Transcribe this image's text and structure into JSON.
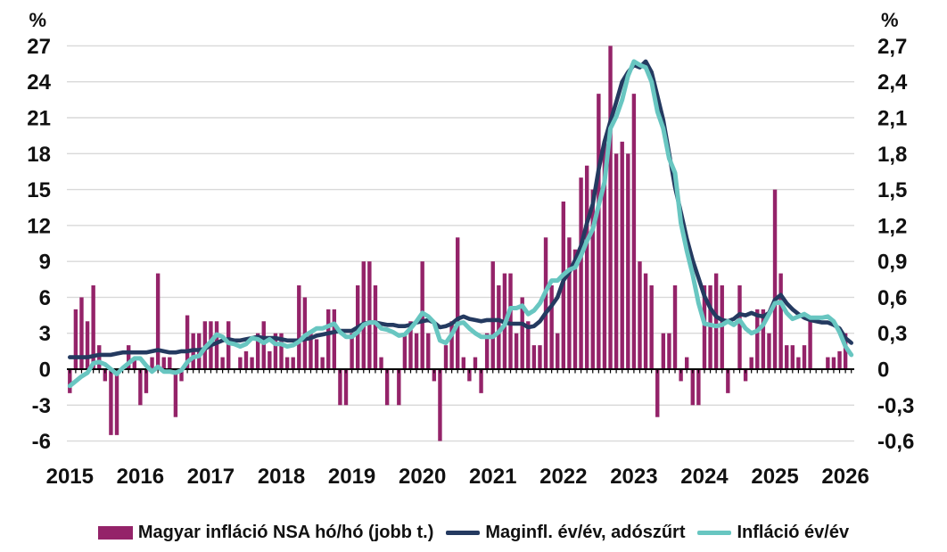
{
  "figure": {
    "background": "#ffffff",
    "text_color": "#111111",
    "gridline_color": "#d9d9d9",
    "zero_line_color": "#000000"
  },
  "legend": {
    "items": [
      {
        "label": "Magyar infláció NSA hó/hó (jobb t.)",
        "marker": "bar-swatch"
      },
      {
        "label": "Maginfl. év/év, adószűrt",
        "marker": "line-swatch"
      },
      {
        "label": "Infláció év/év",
        "marker": "line-swatch"
      }
    ]
  },
  "chart_data": {
    "type": "combo",
    "subtype": [
      "bar",
      "line",
      "line"
    ],
    "x_start": "2015-01",
    "x_end": "2026-02",
    "months": 134,
    "x_year_labels": [
      "2015",
      "2016",
      "2017",
      "2018",
      "2019",
      "2020",
      "2021",
      "2022",
      "2023",
      "2024",
      "2025",
      "2026"
    ],
    "grid": "horizontal-only",
    "legend_position": "bottom",
    "left_axis": {
      "unit": "%",
      "min": -6,
      "max": 27,
      "step": 3,
      "tick_labels": [
        "27",
        "24",
        "21",
        "18",
        "15",
        "12",
        "9",
        "6",
        "3",
        "0",
        "-3",
        "-6"
      ]
    },
    "right_axis": {
      "unit": "%",
      "min": -0.6,
      "max": 2.7,
      "step": 0.3,
      "tick_labels": [
        "2,7",
        "2,4",
        "2,1",
        "1,8",
        "1,5",
        "1,2",
        "0,9",
        "0,6",
        "0,3",
        "0",
        "-0,3",
        "-0,6"
      ]
    },
    "series": [
      {
        "name": "Magyar infláció NSA hó/hó (jobb t.)",
        "type": "bar",
        "axis": "right",
        "color": "#942369",
        "values": [
          -0.2,
          0.5,
          0.6,
          0.4,
          0.7,
          0.2,
          -0.1,
          -0.55,
          -0.55,
          0,
          0.2,
          0.1,
          -0.3,
          -0.2,
          0.1,
          0.8,
          0.1,
          0.1,
          -0.4,
          -0.1,
          0.45,
          0.3,
          0.3,
          0.4,
          0.4,
          0.4,
          0.1,
          0.4,
          0,
          0.1,
          0.15,
          0.1,
          0.3,
          0.4,
          0.15,
          0.3,
          0.3,
          0.1,
          0.1,
          0.7,
          0.6,
          0.3,
          0.25,
          0.1,
          0.5,
          0.5,
          -0.3,
          -0.3,
          0.3,
          0.7,
          0.9,
          0.9,
          0.7,
          0.1,
          -0.3,
          0,
          -0.3,
          0.3,
          0.4,
          0.3,
          0.9,
          0.3,
          -0.1,
          -0.6,
          0.2,
          0.4,
          1.1,
          0.1,
          -0.1,
          0.1,
          -0.2,
          0.3,
          0.9,
          0.7,
          0.8,
          0.8,
          0.3,
          0.6,
          0.4,
          0.2,
          0.2,
          1.1,
          0.7,
          0.3,
          1.4,
          1.1,
          1.0,
          1.6,
          1.7,
          1.5,
          2.3,
          1.9,
          2.7,
          1.8,
          1.9,
          1.8,
          2.3,
          0.9,
          0.8,
          0.7,
          -0.4,
          0.3,
          0.3,
          0.7,
          -0.1,
          0.1,
          -0.3,
          -0.3,
          0.7,
          0.7,
          0.8,
          0.7,
          -0.2,
          0,
          0.7,
          -0.1,
          0.1,
          0.5,
          0.5,
          0.3,
          1.5,
          0.8,
          0.2,
          0.2,
          0.1,
          0.2,
          0.4,
          0,
          0,
          0.1,
          0.1,
          0.15,
          0.3,
          null
        ]
      },
      {
        "name": "Maginfl. év/év, adószűrt",
        "type": "line",
        "axis": "left",
        "color": "#243a60",
        "values": [
          1.0,
          1.0,
          1.0,
          1.0,
          1.1,
          1.2,
          1.2,
          1.2,
          1.3,
          1.4,
          1.4,
          1.4,
          1.4,
          1.4,
          1.5,
          1.6,
          1.5,
          1.4,
          1.4,
          1.5,
          1.5,
          1.6,
          1.6,
          1.7,
          2.0,
          2.2,
          2.4,
          2.5,
          2.4,
          2.4,
          2.5,
          2.6,
          2.7,
          2.6,
          2.6,
          2.6,
          2.5,
          2.4,
          2.4,
          2.4,
          2.5,
          2.6,
          2.8,
          2.9,
          3.0,
          3.1,
          3.2,
          3.2,
          3.2,
          3.5,
          3.8,
          3.9,
          3.9,
          3.8,
          3.7,
          3.7,
          3.6,
          3.6,
          3.7,
          3.9,
          4.0,
          4.1,
          3.9,
          3.5,
          3.6,
          3.8,
          4.2,
          4.4,
          4.2,
          4.1,
          4.0,
          4.1,
          4.1,
          4.1,
          3.9,
          3.8,
          3.8,
          3.8,
          3.5,
          3.6,
          4.0,
          4.7,
          5.3,
          6.0,
          7.4,
          8.1,
          9.1,
          10.3,
          12.2,
          13.8,
          16.7,
          19.0,
          20.7,
          22.3,
          24.0,
          24.8,
          25.4,
          25.2,
          25.7,
          24.8,
          22.8,
          20.8,
          18.0,
          15.2,
          13.1,
          10.9,
          9.1,
          7.6,
          6.1,
          5.1,
          4.4,
          4.1,
          4.0,
          4.2,
          4.6,
          4.5,
          4.7,
          4.5,
          4.4,
          4.7,
          5.8,
          6.2,
          5.5,
          5.0,
          4.6,
          4.3,
          4.1,
          4.0,
          3.9,
          3.9,
          3.7,
          3.4,
          2.6,
          2.2
        ]
      },
      {
        "name": "Infláció év/év",
        "type": "line",
        "axis": "left",
        "color": "#68c6c1",
        "values": [
          -1.4,
          -1.0,
          -0.6,
          -0.3,
          0.5,
          0.6,
          0.4,
          0.0,
          -0.4,
          0.1,
          0.5,
          0.9,
          0.9,
          0.3,
          -0.2,
          0.2,
          -0.2,
          -0.2,
          -0.3,
          -0.1,
          0.6,
          1.0,
          1.1,
          1.8,
          2.3,
          2.9,
          2.7,
          2.2,
          2.1,
          1.9,
          2.1,
          2.6,
          2.5,
          2.2,
          2.5,
          2.1,
          2.1,
          1.9,
          2.0,
          2.3,
          2.8,
          3.1,
          3.4,
          3.4,
          3.6,
          3.8,
          3.1,
          2.7,
          2.7,
          3.1,
          3.7,
          3.9,
          3.9,
          3.4,
          3.3,
          3.1,
          2.8,
          2.9,
          3.4,
          4.0,
          4.7,
          4.4,
          3.9,
          2.4,
          2.2,
          2.9,
          3.8,
          3.9,
          3.4,
          3.0,
          2.7,
          2.7,
          2.7,
          3.1,
          3.7,
          5.1,
          5.1,
          5.3,
          4.6,
          4.9,
          5.5,
          6.5,
          7.4,
          7.4,
          7.9,
          8.3,
          8.5,
          9.5,
          10.7,
          11.7,
          13.7,
          15.6,
          20.1,
          21.1,
          22.5,
          24.5,
          25.7,
          25.4,
          25.2,
          24.0,
          21.5,
          20.1,
          17.6,
          16.4,
          12.2,
          9.9,
          7.9,
          5.5,
          3.8,
          3.7,
          3.6,
          3.7,
          4.0,
          3.7,
          4.1,
          3.4,
          3.0,
          3.2,
          3.7,
          4.6,
          5.5,
          5.6,
          4.7,
          4.2,
          4.4,
          4.6,
          4.3,
          4.3,
          4.3,
          4.4,
          4.0,
          3.1,
          1.9,
          1.2
        ]
      }
    ]
  }
}
